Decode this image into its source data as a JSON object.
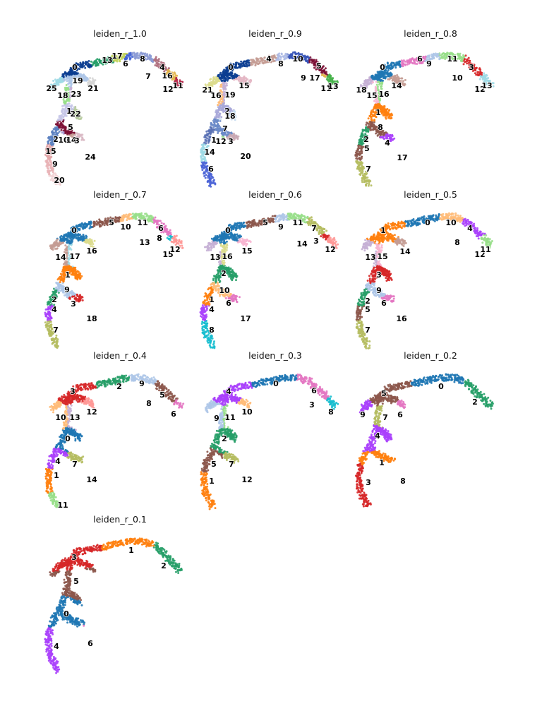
{
  "palette": [
    "#1f77b4",
    "#ff7f0e",
    "#279e68",
    "#d62728",
    "#aa40fc",
    "#8c564b",
    "#e377c2",
    "#b5bd61",
    "#17becf",
    "#aec7e8",
    "#ffbb78",
    "#98df8a",
    "#ff9896",
    "#c5b0d5",
    "#c49c94",
    "#f7b6d2",
    "#dbdb8d",
    "#9edae5",
    "#ad494a",
    "#8c6d31",
    "#b4d3ea",
    "#ead09e",
    "#b7cb9e",
    "#e8a4a8",
    "#d7bde4",
    "#cbb4ae"
  ],
  "chart_data": [
    {
      "type": "scatter",
      "title": "leiden_r_1.0",
      "clusters": [
        {
          "label": "0",
          "color": "#0b3d91"
        },
        {
          "label": "19",
          "color": "#aec7e8"
        },
        {
          "label": "21",
          "color": "#d5d5d5"
        },
        {
          "label": "25",
          "color": "#9edae5"
        },
        {
          "label": "18",
          "color": "#98df8a"
        },
        {
          "label": "23",
          "color": "#c5b0d5"
        },
        {
          "label": "1",
          "color": "#c7c7e8"
        },
        {
          "label": "22",
          "color": "#b7cb9e"
        },
        {
          "label": "5",
          "color": "#7b1034"
        },
        {
          "label": "2",
          "color": "#5a7fc0"
        },
        {
          "label": "10",
          "color": "#a89bd0"
        },
        {
          "label": "14",
          "color": "#c49c94"
        },
        {
          "label": "3",
          "color": "#d9b9c4"
        },
        {
          "label": "15",
          "color": "#e2a6a9"
        },
        {
          "label": "9",
          "color": "#e9b4b7"
        },
        {
          "label": "20",
          "color": "#f2d3d5"
        },
        {
          "label": "24",
          "color": "#17becf"
        },
        {
          "label": "13",
          "color": "#279e68"
        },
        {
          "label": "17",
          "color": "#c2d35a"
        },
        {
          "label": "6",
          "color": "#4062d6"
        },
        {
          "label": "8",
          "color": "#8c9bd5"
        },
        {
          "label": "7",
          "color": "#3a5fb0"
        },
        {
          "label": "4",
          "color": "#b0707f"
        },
        {
          "label": "16",
          "color": "#e2b44a"
        },
        {
          "label": "12",
          "color": "#47b34b"
        },
        {
          "label": "11",
          "color": "#b5284a"
        }
      ]
    },
    {
      "type": "scatter",
      "title": "leiden_r_0.9",
      "clusters": [
        {
          "label": "0",
          "color": "#0b3d91"
        },
        {
          "label": "21",
          "color": "#dbdb8d"
        },
        {
          "label": "16",
          "color": "#ffbb78"
        },
        {
          "label": "19",
          "color": "#c5b0d5"
        },
        {
          "label": "15",
          "color": "#e3b7c4"
        },
        {
          "label": "2",
          "color": "#a9a9d9"
        },
        {
          "label": "18",
          "color": "#c6dbef"
        },
        {
          "label": "7",
          "color": "#6a8ac8"
        },
        {
          "label": "1",
          "color": "#5b72b5"
        },
        {
          "label": "12",
          "color": "#98df8a"
        },
        {
          "label": "3",
          "color": "#c9a9b4"
        },
        {
          "label": "14",
          "color": "#9edae5"
        },
        {
          "label": "6",
          "color": "#4a63d6"
        },
        {
          "label": "20",
          "color": "#dddddd"
        },
        {
          "label": "4",
          "color": "#c49c94"
        },
        {
          "label": "8",
          "color": "#aebbe6"
        },
        {
          "label": "10",
          "color": "#3955b8"
        },
        {
          "label": "9",
          "color": "#c15a77"
        },
        {
          "label": "5",
          "color": "#7b1034"
        },
        {
          "label": "17",
          "color": "#e2b44a"
        },
        {
          "label": "11",
          "color": "#b5284a"
        },
        {
          "label": "13",
          "color": "#47b34b"
        }
      ]
    },
    {
      "type": "scatter",
      "title": "leiden_r_0.8",
      "clusters": [
        {
          "label": "0",
          "color": "#1f77b4"
        },
        {
          "label": "14",
          "color": "#c49c94"
        },
        {
          "label": "18",
          "color": "#c5b0d5"
        },
        {
          "label": "15",
          "color": "#f7b6d2"
        },
        {
          "label": "16",
          "color": "#98df8a"
        },
        {
          "label": "1",
          "color": "#ff7f0e"
        },
        {
          "label": "8",
          "color": "#8c564b"
        },
        {
          "label": "2",
          "color": "#279e68"
        },
        {
          "label": "4",
          "color": "#aa40fc"
        },
        {
          "label": "5",
          "color": "#8c564b"
        },
        {
          "label": "7",
          "color": "#b5bd61"
        },
        {
          "label": "17",
          "color": "#17becf"
        },
        {
          "label": "6",
          "color": "#e377c2"
        },
        {
          "label": "9",
          "color": "#aec7e8"
        },
        {
          "label": "11",
          "color": "#98df8a"
        },
        {
          "label": "10",
          "color": "#ffbb78"
        },
        {
          "label": "3",
          "color": "#d62728"
        },
        {
          "label": "12",
          "color": "#ff9896"
        },
        {
          "label": "13",
          "color": "#9edae5"
        }
      ]
    },
    {
      "type": "scatter",
      "title": "leiden_r_0.7",
      "clusters": [
        {
          "label": "0",
          "color": "#1f77b4"
        },
        {
          "label": "16",
          "color": "#dbdb8d"
        },
        {
          "label": "14",
          "color": "#c49c94"
        },
        {
          "label": "17",
          "color": "#9edae5"
        },
        {
          "label": "1",
          "color": "#ff7f0e"
        },
        {
          "label": "9",
          "color": "#aec7e8"
        },
        {
          "label": "2",
          "color": "#279e68"
        },
        {
          "label": "3",
          "color": "#d62728"
        },
        {
          "label": "4",
          "color": "#aa40fc"
        },
        {
          "label": "7",
          "color": "#b5bd61"
        },
        {
          "label": "18",
          "color": "#ad494a"
        },
        {
          "label": "5",
          "color": "#8c564b"
        },
        {
          "label": "10",
          "color": "#ffbb78"
        },
        {
          "label": "11",
          "color": "#98df8a"
        },
        {
          "label": "13",
          "color": "#c5b0d5"
        },
        {
          "label": "6",
          "color": "#e377c2"
        },
        {
          "label": "8",
          "color": "#17becf"
        },
        {
          "label": "15",
          "color": "#f7b6d2"
        },
        {
          "label": "12",
          "color": "#ff9896"
        }
      ]
    },
    {
      "type": "scatter",
      "title": "leiden_r_0.6",
      "clusters": [
        {
          "label": "0",
          "color": "#1f77b4"
        },
        {
          "label": "15",
          "color": "#f7b6d2"
        },
        {
          "label": "13",
          "color": "#c5b0d5"
        },
        {
          "label": "16",
          "color": "#dbdb8d"
        },
        {
          "label": "2",
          "color": "#279e68"
        },
        {
          "label": "10",
          "color": "#ffbb78"
        },
        {
          "label": "1",
          "color": "#ff7f0e"
        },
        {
          "label": "6",
          "color": "#e377c2"
        },
        {
          "label": "4",
          "color": "#aa40fc"
        },
        {
          "label": "8",
          "color": "#17becf"
        },
        {
          "label": "17",
          "color": "#9edae5"
        },
        {
          "label": "5",
          "color": "#8c564b"
        },
        {
          "label": "9",
          "color": "#aec7e8"
        },
        {
          "label": "11",
          "color": "#98df8a"
        },
        {
          "label": "7",
          "color": "#b5bd61"
        },
        {
          "label": "14",
          "color": "#c49c94"
        },
        {
          "label": "3",
          "color": "#d62728"
        },
        {
          "label": "12",
          "color": "#ff9896"
        }
      ]
    },
    {
      "type": "scatter",
      "title": "leiden_r_0.5",
      "clusters": [
        {
          "label": "1",
          "color": "#ff7f0e"
        },
        {
          "label": "14",
          "color": "#c49c94"
        },
        {
          "label": "13",
          "color": "#c5b0d5"
        },
        {
          "label": "15",
          "color": "#f7b6d2"
        },
        {
          "label": "3",
          "color": "#d62728"
        },
        {
          "label": "9",
          "color": "#aec7e8"
        },
        {
          "label": "2",
          "color": "#279e68"
        },
        {
          "label": "6",
          "color": "#e377c2"
        },
        {
          "label": "5",
          "color": "#8c564b"
        },
        {
          "label": "7",
          "color": "#b5bd61"
        },
        {
          "label": "16",
          "color": "#dbdb8d"
        },
        {
          "label": "0",
          "color": "#1f77b4"
        },
        {
          "label": "10",
          "color": "#ffbb78"
        },
        {
          "label": "4",
          "color": "#aa40fc"
        },
        {
          "label": "8",
          "color": "#17becf"
        },
        {
          "label": "12",
          "color": "#ff9896"
        },
        {
          "label": "11",
          "color": "#98df8a"
        }
      ]
    },
    {
      "type": "scatter",
      "title": "leiden_r_0.4",
      "clusters": [
        {
          "label": "3",
          "color": "#d62728"
        },
        {
          "label": "12",
          "color": "#ff9896"
        },
        {
          "label": "10",
          "color": "#ffbb78"
        },
        {
          "label": "13",
          "color": "#c5b0d5"
        },
        {
          "label": "0",
          "color": "#1f77b4"
        },
        {
          "label": "4",
          "color": "#aa40fc"
        },
        {
          "label": "7",
          "color": "#b5bd61"
        },
        {
          "label": "1",
          "color": "#ff7f0e"
        },
        {
          "label": "14",
          "color": "#c49c94"
        },
        {
          "label": "11",
          "color": "#98df8a"
        },
        {
          "label": "2",
          "color": "#279e68"
        },
        {
          "label": "9",
          "color": "#aec7e8"
        },
        {
          "label": "5",
          "color": "#8c564b"
        },
        {
          "label": "8",
          "color": "#17becf"
        },
        {
          "label": "6",
          "color": "#e377c2"
        }
      ]
    },
    {
      "type": "scatter",
      "title": "leiden_r_0.3",
      "clusters": [
        {
          "label": "4",
          "color": "#aa40fc"
        },
        {
          "label": "10",
          "color": "#ffbb78"
        },
        {
          "label": "9",
          "color": "#aec7e8"
        },
        {
          "label": "11",
          "color": "#98df8a"
        },
        {
          "label": "2",
          "color": "#279e68"
        },
        {
          "label": "5",
          "color": "#8c564b"
        },
        {
          "label": "7",
          "color": "#b5bd61"
        },
        {
          "label": "1",
          "color": "#ff7f0e"
        },
        {
          "label": "12",
          "color": "#ff9896"
        },
        {
          "label": "0",
          "color": "#1f77b4"
        },
        {
          "label": "6",
          "color": "#e377c2"
        },
        {
          "label": "3",
          "color": "#d62728"
        },
        {
          "label": "8",
          "color": "#17becf"
        }
      ]
    },
    {
      "type": "scatter",
      "title": "leiden_r_0.2",
      "clusters": [
        {
          "label": "5",
          "color": "#8c564b"
        },
        {
          "label": "9",
          "color": "#aa40fc"
        },
        {
          "label": "7",
          "color": "#b5bd61"
        },
        {
          "label": "6",
          "color": "#e377c2"
        },
        {
          "label": "4",
          "color": "#aa40fc"
        },
        {
          "label": "1",
          "color": "#ff7f0e"
        },
        {
          "label": "3",
          "color": "#d62728"
        },
        {
          "label": "8",
          "color": "#17becf"
        },
        {
          "label": "0",
          "color": "#1f77b4"
        },
        {
          "label": "2",
          "color": "#279e68"
        }
      ]
    },
    {
      "type": "scatter",
      "title": "leiden_r_0.1",
      "clusters": [
        {
          "label": "3",
          "color": "#d62728"
        },
        {
          "label": "5",
          "color": "#8c564b"
        },
        {
          "label": "0",
          "color": "#1f77b4"
        },
        {
          "label": "4",
          "color": "#aa40fc"
        },
        {
          "label": "6",
          "color": "#e377c2"
        },
        {
          "label": "1",
          "color": "#ff7f0e"
        },
        {
          "label": "2",
          "color": "#279e68"
        }
      ]
    }
  ]
}
